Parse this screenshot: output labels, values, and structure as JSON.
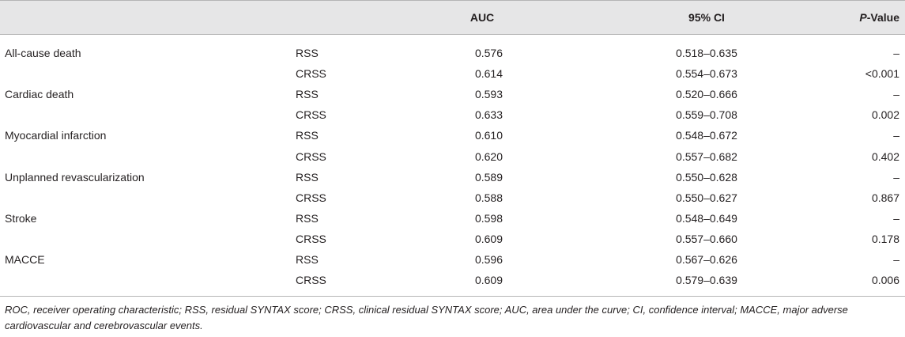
{
  "table": {
    "headers": {
      "outcome": "",
      "score": "",
      "auc": "AUC",
      "ci": "95% CI",
      "p_value_italic": "P",
      "p_value_rest": "-Value"
    },
    "rows": [
      {
        "outcome": "All-cause death",
        "score": "RSS",
        "auc": "0.576",
        "ci": "0.518–0.635",
        "p": "–"
      },
      {
        "outcome": "",
        "score": "CRSS",
        "auc": "0.614",
        "ci": "0.554–0.673",
        "p": "<0.001"
      },
      {
        "outcome": "Cardiac death",
        "score": "RSS",
        "auc": "0.593",
        "ci": "0.520–0.666",
        "p": "–"
      },
      {
        "outcome": "",
        "score": "CRSS",
        "auc": "0.633",
        "ci": "0.559–0.708",
        "p": "0.002"
      },
      {
        "outcome": "Myocardial infarction",
        "score": "RSS",
        "auc": "0.610",
        "ci": "0.548–0.672",
        "p": "–"
      },
      {
        "outcome": "",
        "score": "CRSS",
        "auc": "0.620",
        "ci": "0.557–0.682",
        "p": "0.402"
      },
      {
        "outcome": "Unplanned revascularization",
        "score": "RSS",
        "auc": "0.589",
        "ci": "0.550–0.628",
        "p": "–"
      },
      {
        "outcome": "",
        "score": "CRSS",
        "auc": "0.588",
        "ci": "0.550–0.627",
        "p": "0.867"
      },
      {
        "outcome": "Stroke",
        "score": "RSS",
        "auc": "0.598",
        "ci": "0.548–0.649",
        "p": "–"
      },
      {
        "outcome": "",
        "score": "CRSS",
        "auc": "0.609",
        "ci": "0.557–0.660",
        "p": "0.178"
      },
      {
        "outcome": "MACCE",
        "score": "RSS",
        "auc": "0.596",
        "ci": "0.567–0.626",
        "p": "–"
      },
      {
        "outcome": "",
        "score": "CRSS",
        "auc": "0.609",
        "ci": "0.579–0.639",
        "p": "0.006"
      }
    ],
    "footnote": "ROC, receiver operating characteristic; RSS, residual SYNTAX score; CRSS, clinical residual SYNTAX score; AUC, area under the curve; CI, confidence interval; MACCE, major adverse cardiovascular and cerebrovascular events."
  },
  "colors": {
    "header_bg": "#e6e6e7",
    "rule": "#b5b5b5",
    "text": "#231f20"
  }
}
